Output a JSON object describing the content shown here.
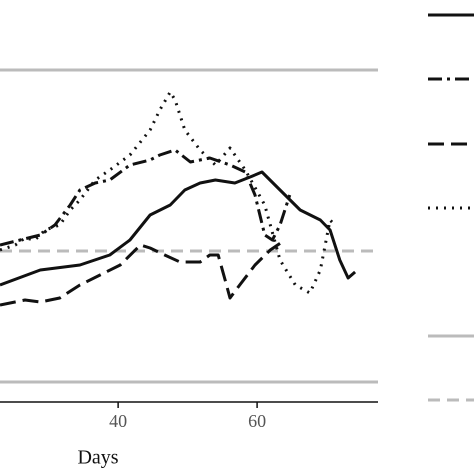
{
  "chart_data": {
    "type": "line",
    "xlabel": "Days",
    "xlim": [
      23,
      77.4
    ],
    "xticks": [
      40,
      60
    ],
    "ylim": [
      0,
      400
    ],
    "hlines": [
      {
        "value": 332,
        "color": "#bbbbbb",
        "dash": "solid"
      },
      {
        "value": 151,
        "color": "#bbbbbb",
        "dash": "dashed"
      },
      {
        "value": 20,
        "color": "#bbbbbb",
        "dash": "solid"
      }
    ],
    "series": [
      {
        "color": "#111111",
        "dash": "solid",
        "x": [
          23.0,
          28.8,
          34.5,
          38.8,
          41.7,
          44.6,
          47.5,
          49.6,
          51.8,
          54.0,
          56.8,
          59.0,
          60.7,
          63.3,
          66.2,
          69.1,
          70.5,
          71.9,
          73.1,
          74.1
        ],
        "values": [
          117,
          132,
          137,
          147,
          162,
          187,
          197,
          212,
          219,
          222,
          219,
          225,
          230,
          212,
          192,
          182,
          172,
          142,
          124,
          130
        ]
      },
      {
        "color": "#111111",
        "dash": "dashdot",
        "x": [
          23.0,
          25.9,
          28.8,
          30.9,
          33.1,
          34.5,
          36.7,
          38.8,
          41.7,
          44.6,
          46.0,
          48.2,
          50.4,
          53.2,
          56.1,
          58.3,
          59.7,
          61.1,
          62.2,
          63.3,
          64.7
        ],
        "values": [
          157,
          162,
          167,
          177,
          197,
          212,
          219,
          222,
          237,
          242,
          247,
          252,
          240,
          244,
          237,
          230,
          207,
          167,
          162,
          177,
          207
        ]
      },
      {
        "color": "#111111",
        "dash": "longdash",
        "x": [
          23.0,
          26.6,
          28.8,
          30.2,
          31.6,
          34.5,
          37.4,
          40.3,
          43.2,
          44.6,
          46.7,
          48.9,
          51.8,
          53.2,
          54.4,
          55.4,
          56.1,
          57.5,
          59.7,
          61.9,
          64.0
        ],
        "values": [
          97,
          102,
          100,
          102,
          104,
          117,
          127,
          137,
          157,
          154,
          147,
          140,
          140,
          147,
          147,
          122,
          104,
          117,
          137,
          152,
          162
        ]
      },
      {
        "color": "#111111",
        "dash": "dotted",
        "x": [
          23.0,
          25.2,
          26.6,
          28.0,
          29.5,
          31.6,
          33.1,
          34.5,
          36.7,
          38.8,
          41.7,
          44.6,
          46.0,
          47.5,
          48.2,
          49.6,
          51.8,
          54.0,
          56.1,
          58.3,
          61.1,
          63.3,
          65.5,
          67.6,
          69.1,
          70.5,
          71.2
        ],
        "values": [
          152,
          157,
          164,
          162,
          172,
          177,
          192,
          202,
          222,
          232,
          247,
          272,
          292,
          310,
          302,
          272,
          252,
          237,
          254,
          232,
          197,
          142,
          117,
          109,
          132,
          182,
          177
        ]
      }
    ]
  }
}
